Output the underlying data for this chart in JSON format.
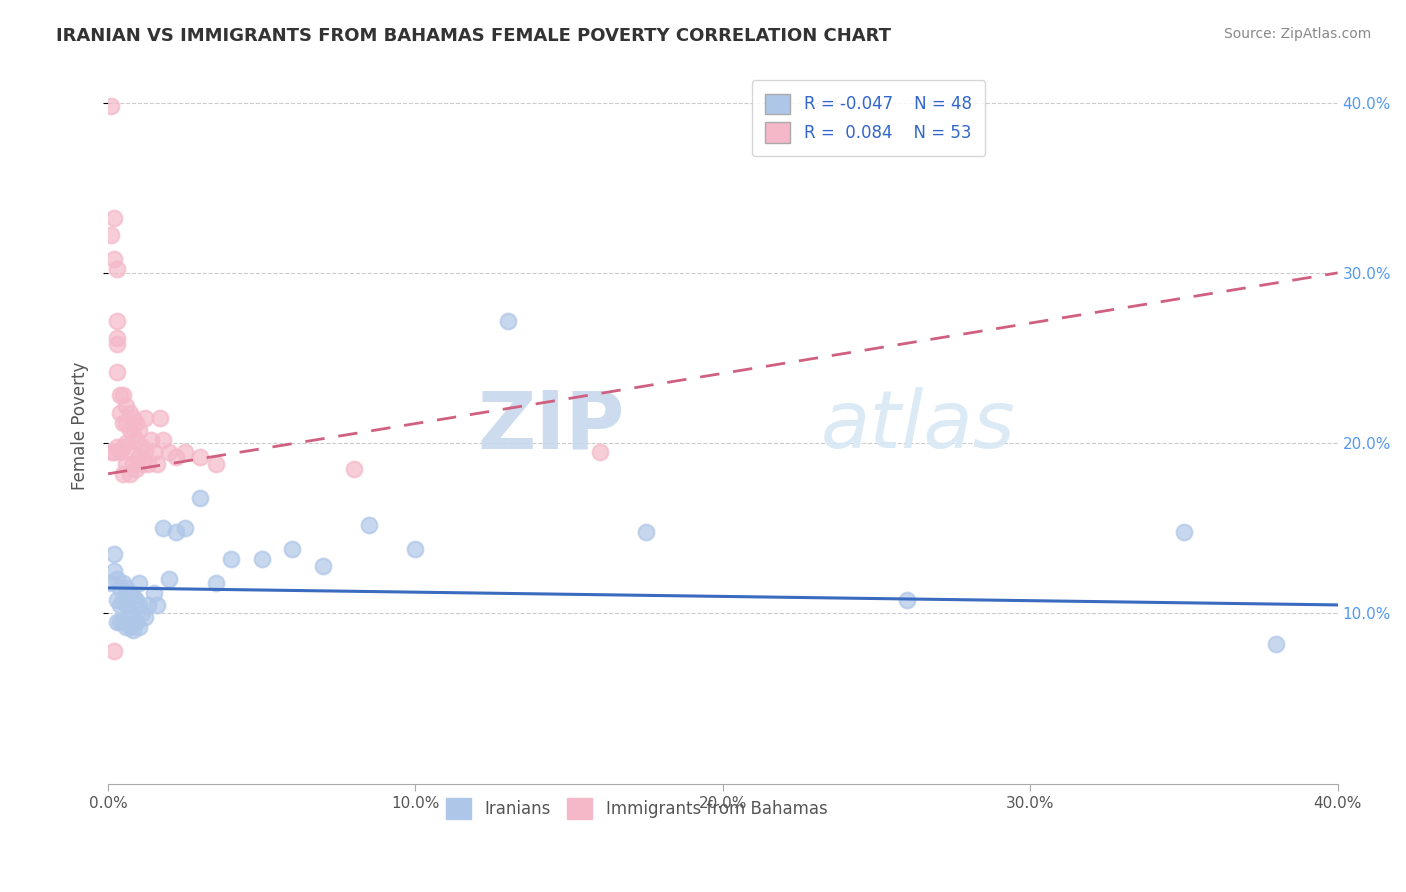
{
  "title": "IRANIAN VS IMMIGRANTS FROM BAHAMAS FEMALE POVERTY CORRELATION CHART",
  "source": "Source: ZipAtlas.com",
  "ylabel": "Female Poverty",
  "xlim": [
    0.0,
    0.4
  ],
  "ylim": [
    0.0,
    0.42
  ],
  "xticks": [
    0.0,
    0.1,
    0.2,
    0.3,
    0.4
  ],
  "xtick_labels": [
    "0.0%",
    "10.0%",
    "20.0%",
    "30.0%",
    "40.0%"
  ],
  "ytick_labels_right": [
    "10.0%",
    "20.0%",
    "30.0%",
    "40.0%"
  ],
  "yticks_right": [
    0.1,
    0.2,
    0.3,
    0.4
  ],
  "grid_color": "#cccccc",
  "bg_color": "#ffffff",
  "iranians_color": "#aec6e8",
  "bahamas_color": "#f4b8c8",
  "iranians_line_color": "#3a6bbf",
  "bahamas_line_color": "#d06080",
  "legend_r_iranians": "-0.047",
  "legend_n_iranians": "48",
  "legend_r_bahamas": "0.084",
  "legend_n_bahamas": "53",
  "watermark_zip": "ZIP",
  "watermark_atlas": "atlas",
  "iranians_x": [
    0.001,
    0.002,
    0.002,
    0.003,
    0.003,
    0.003,
    0.004,
    0.004,
    0.004,
    0.005,
    0.005,
    0.005,
    0.006,
    0.006,
    0.006,
    0.007,
    0.007,
    0.007,
    0.008,
    0.008,
    0.008,
    0.009,
    0.009,
    0.01,
    0.01,
    0.01,
    0.011,
    0.012,
    0.013,
    0.015,
    0.016,
    0.018,
    0.02,
    0.022,
    0.025,
    0.03,
    0.035,
    0.04,
    0.05,
    0.06,
    0.07,
    0.085,
    0.1,
    0.13,
    0.175,
    0.26,
    0.35,
    0.38
  ],
  "iranians_y": [
    0.118,
    0.135,
    0.125,
    0.12,
    0.108,
    0.095,
    0.115,
    0.105,
    0.095,
    0.118,
    0.108,
    0.095,
    0.115,
    0.105,
    0.092,
    0.112,
    0.1,
    0.092,
    0.11,
    0.098,
    0.09,
    0.108,
    0.095,
    0.118,
    0.105,
    0.092,
    0.1,
    0.098,
    0.105,
    0.112,
    0.105,
    0.15,
    0.12,
    0.148,
    0.15,
    0.168,
    0.118,
    0.132,
    0.132,
    0.138,
    0.128,
    0.152,
    0.138,
    0.272,
    0.148,
    0.108,
    0.148,
    0.082
  ],
  "bahamas_x": [
    0.001,
    0.001,
    0.001,
    0.002,
    0.002,
    0.002,
    0.002,
    0.003,
    0.003,
    0.003,
    0.003,
    0.003,
    0.003,
    0.004,
    0.004,
    0.004,
    0.005,
    0.005,
    0.005,
    0.005,
    0.006,
    0.006,
    0.006,
    0.006,
    0.007,
    0.007,
    0.007,
    0.007,
    0.008,
    0.008,
    0.008,
    0.009,
    0.009,
    0.009,
    0.01,
    0.01,
    0.011,
    0.011,
    0.012,
    0.012,
    0.013,
    0.014,
    0.015,
    0.016,
    0.017,
    0.018,
    0.02,
    0.022,
    0.025,
    0.03,
    0.035,
    0.08,
    0.16
  ],
  "bahamas_y": [
    0.398,
    0.322,
    0.195,
    0.332,
    0.308,
    0.195,
    0.078,
    0.302,
    0.272,
    0.262,
    0.258,
    0.242,
    0.198,
    0.228,
    0.218,
    0.195,
    0.228,
    0.212,
    0.198,
    0.182,
    0.222,
    0.212,
    0.2,
    0.188,
    0.218,
    0.208,
    0.195,
    0.182,
    0.215,
    0.205,
    0.188,
    0.212,
    0.202,
    0.185,
    0.208,
    0.192,
    0.198,
    0.188,
    0.215,
    0.195,
    0.188,
    0.202,
    0.195,
    0.188,
    0.215,
    0.202,
    0.195,
    0.192,
    0.195,
    0.192,
    0.188,
    0.185,
    0.195
  ]
}
